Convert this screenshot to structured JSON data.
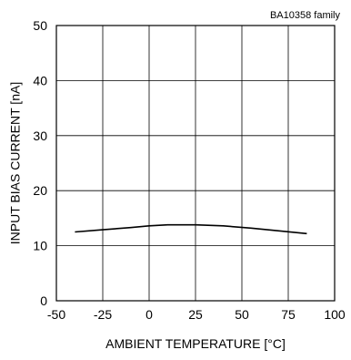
{
  "chart_data": {
    "type": "line",
    "annotation": "BA10358  family",
    "xlabel": "AMBIENT TEMPERATURE [°C]",
    "ylabel": "INPUT BIAS CURRENT [nA]",
    "xlim": [
      -50,
      100
    ],
    "ylim": [
      0,
      50
    ],
    "x_ticks": [
      "-50",
      "-25",
      "0",
      "25",
      "50",
      "75",
      "100"
    ],
    "y_ticks": [
      "0",
      "10",
      "20",
      "30",
      "40",
      "50"
    ],
    "x_tick_values": [
      -50,
      -25,
      0,
      25,
      50,
      75,
      100
    ],
    "y_tick_values": [
      0,
      10,
      20,
      30,
      40,
      50
    ],
    "grid": true,
    "line_color": "#000000",
    "series": [
      {
        "x": [
          -40,
          -25,
          -10,
          0,
          10,
          25,
          40,
          55,
          70,
          85
        ],
        "y": [
          12.5,
          12.9,
          13.3,
          13.6,
          13.8,
          13.8,
          13.6,
          13.2,
          12.7,
          12.2
        ]
      }
    ]
  }
}
